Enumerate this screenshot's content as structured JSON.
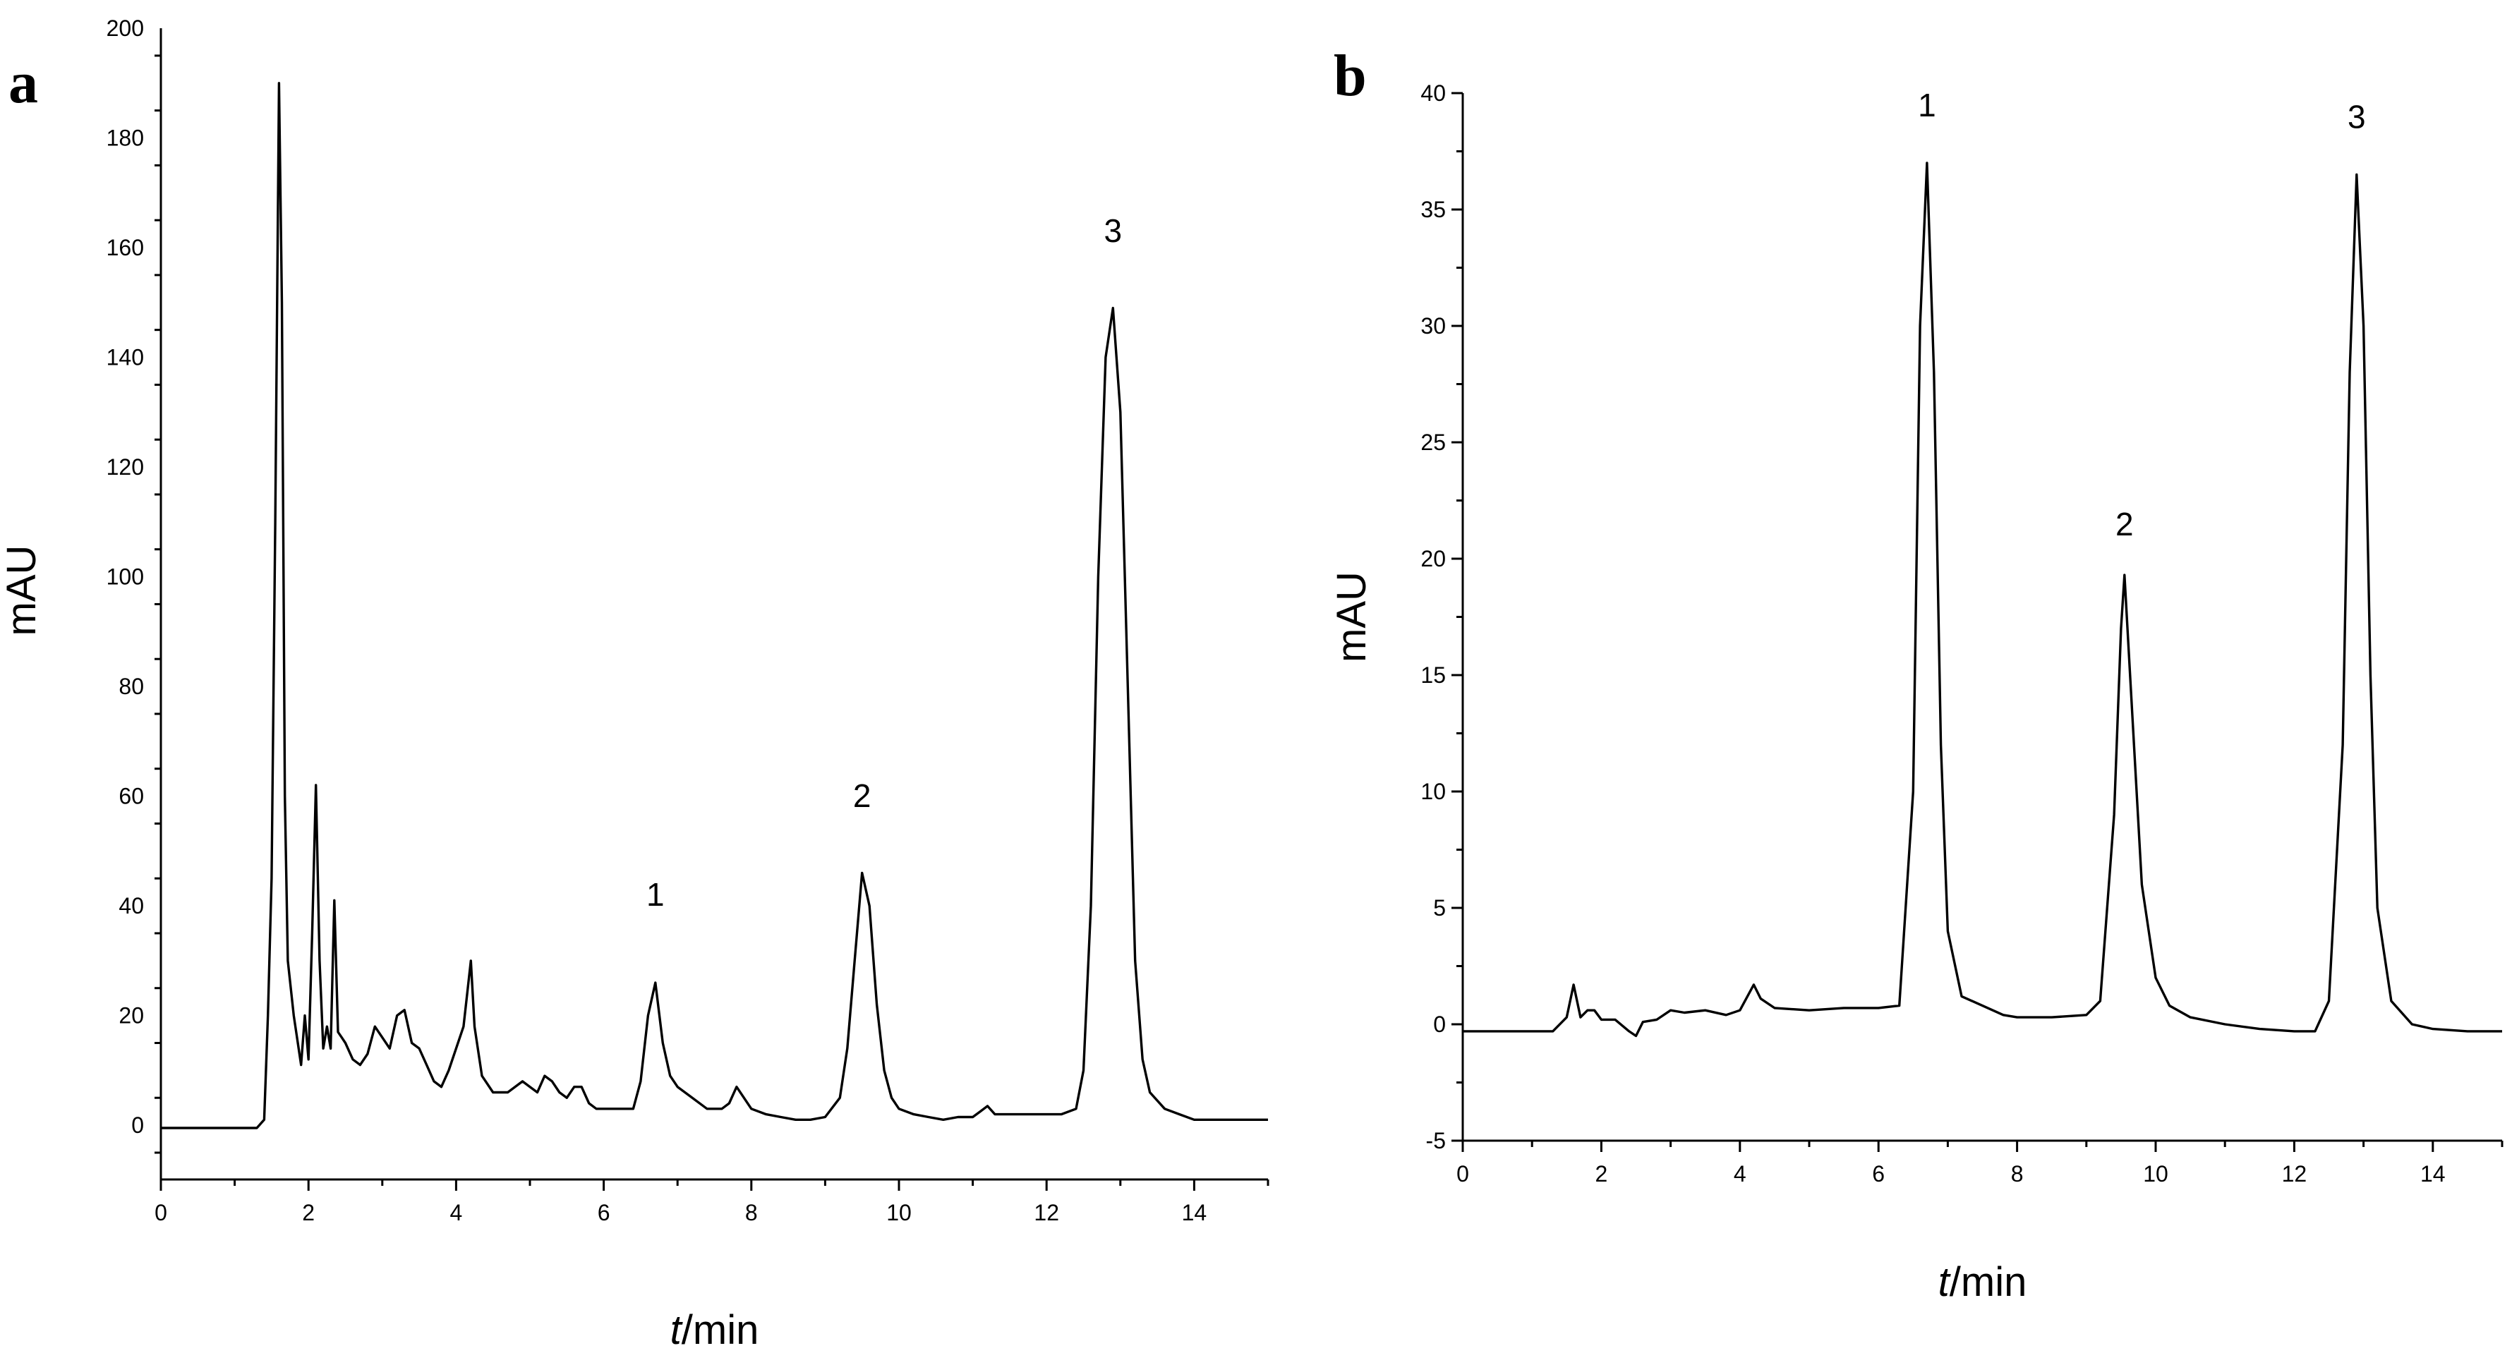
{
  "chart_data": [
    {
      "panel": "a",
      "type": "line",
      "xlabel_italic": "t",
      "xlabel_rest": "/min",
      "ylabel": "mAU",
      "xlim": [
        0,
        15
      ],
      "ylim": [
        -5,
        200
      ],
      "xticks": [
        0,
        2,
        4,
        6,
        8,
        10,
        12,
        14
      ],
      "yticks": [
        0,
        20,
        40,
        60,
        80,
        100,
        120,
        140,
        160,
        180,
        200
      ],
      "color": "#000000",
      "peak_labels": [
        {
          "text": "1",
          "x": 6.7,
          "y": 40
        },
        {
          "text": "2",
          "x": 9.5,
          "y": 58
        },
        {
          "text": "3",
          "x": 12.9,
          "y": 161
        }
      ],
      "series": [
        {
          "x": [
            0,
            1.3,
            1.4,
            1.45,
            1.5,
            1.55,
            1.6,
            1.64,
            1.68,
            1.72,
            1.8,
            1.9,
            1.95,
            2.0,
            2.05,
            2.1,
            2.15,
            2.2,
            2.25,
            2.3,
            2.35,
            2.4,
            2.45,
            2.5,
            2.6,
            2.7,
            2.8,
            2.9,
            3.0,
            3.1,
            3.2,
            3.3,
            3.4,
            3.5,
            3.6,
            3.7,
            3.8,
            3.9,
            4.0,
            4.1,
            4.2,
            4.25,
            4.35,
            4.5,
            4.7,
            4.9,
            5.0,
            5.1,
            5.2,
            5.3,
            5.4,
            5.5,
            5.6,
            5.7,
            5.8,
            5.9,
            6.0,
            6.2,
            6.4,
            6.5,
            6.6,
            6.7,
            6.8,
            6.9,
            7.0,
            7.2,
            7.4,
            7.6,
            7.7,
            7.8,
            7.9,
            8.0,
            8.2,
            8.4,
            8.6,
            8.8,
            9.0,
            9.2,
            9.3,
            9.4,
            9.5,
            9.6,
            9.7,
            9.8,
            9.9,
            10.0,
            10.2,
            10.4,
            10.6,
            10.8,
            11.0,
            11.1,
            11.2,
            11.3,
            11.5,
            11.7,
            12.0,
            12.2,
            12.4,
            12.5,
            12.6,
            12.7,
            12.8,
            12.9,
            13.0,
            13.1,
            13.2,
            13.3,
            13.4,
            13.6,
            13.8,
            14.0,
            14.5,
            15.0
          ],
          "y": [
            -0.5,
            -0.5,
            1,
            20,
            45,
            110,
            190,
            150,
            60,
            30,
            20,
            11,
            20,
            12,
            35,
            62,
            30,
            14,
            18,
            14,
            41,
            17,
            16,
            15,
            12,
            11,
            13,
            18,
            16,
            14,
            20,
            21,
            15,
            14,
            11,
            8,
            7,
            10,
            14,
            18,
            30,
            18,
            9,
            6,
            6,
            8,
            7,
            6,
            9,
            8,
            6,
            5,
            7,
            7,
            4,
            3,
            3,
            3,
            3,
            8,
            20,
            26,
            15,
            9,
            7,
            5,
            3,
            3,
            4,
            7,
            5,
            3,
            2,
            1.5,
            1,
            1,
            1.5,
            5,
            14,
            30,
            46,
            40,
            22,
            10,
            5,
            3,
            2,
            1.5,
            1,
            1.5,
            1.5,
            2.5,
            3.5,
            2,
            2,
            2,
            2,
            2,
            3,
            10,
            40,
            100,
            140,
            149,
            130,
            80,
            30,
            12,
            6,
            3,
            2,
            1,
            1,
            1
          ]
        }
      ]
    },
    {
      "panel": "b",
      "type": "line",
      "xlabel_italic": "t",
      "xlabel_rest": "/min",
      "ylabel": "mAU",
      "xlim": [
        0,
        15
      ],
      "ylim": [
        -5,
        40
      ],
      "xticks": [
        0,
        2,
        4,
        6,
        8,
        10,
        12,
        14
      ],
      "yticks": [
        -5,
        0,
        5,
        10,
        15,
        20,
        25,
        30,
        35,
        40
      ],
      "color": "#000000",
      "peak_labels": [
        {
          "text": "1",
          "x": 6.7,
          "y": 39
        },
        {
          "text": "2",
          "x": 9.55,
          "y": 21
        },
        {
          "text": "3",
          "x": 12.9,
          "y": 38.5
        }
      ],
      "series": [
        {
          "x": [
            0,
            1.3,
            1.5,
            1.6,
            1.7,
            1.8,
            1.9,
            2.0,
            2.2,
            2.4,
            2.5,
            2.6,
            2.8,
            3.0,
            3.2,
            3.5,
            3.8,
            4.0,
            4.2,
            4.3,
            4.5,
            5.0,
            5.5,
            6.0,
            6.3,
            6.5,
            6.6,
            6.7,
            6.8,
            6.9,
            7.0,
            7.2,
            7.5,
            7.8,
            8.0,
            8.5,
            9.0,
            9.2,
            9.4,
            9.5,
            9.55,
            9.65,
            9.8,
            10.0,
            10.2,
            10.5,
            11.0,
            11.5,
            12.0,
            12.3,
            12.5,
            12.7,
            12.8,
            12.9,
            13.0,
            13.1,
            13.2,
            13.4,
            13.7,
            14.0,
            14.5,
            15.0
          ],
          "y": [
            -0.3,
            -0.3,
            0.3,
            1.7,
            0.3,
            0.6,
            0.6,
            0.2,
            0.2,
            -0.3,
            -0.5,
            0.1,
            0.2,
            0.6,
            0.5,
            0.6,
            0.4,
            0.6,
            1.7,
            1.1,
            0.7,
            0.6,
            0.7,
            0.7,
            0.8,
            10,
            30,
            37,
            28,
            12,
            4,
            1.2,
            0.8,
            0.4,
            0.3,
            0.3,
            0.4,
            1,
            9,
            17,
            19.3,
            14,
            6,
            2,
            0.8,
            0.3,
            0,
            -0.2,
            -0.3,
            -0.3,
            1,
            12,
            28,
            36.5,
            30,
            15,
            5,
            1,
            0,
            -0.2,
            -0.3,
            -0.3
          ]
        }
      ]
    }
  ]
}
